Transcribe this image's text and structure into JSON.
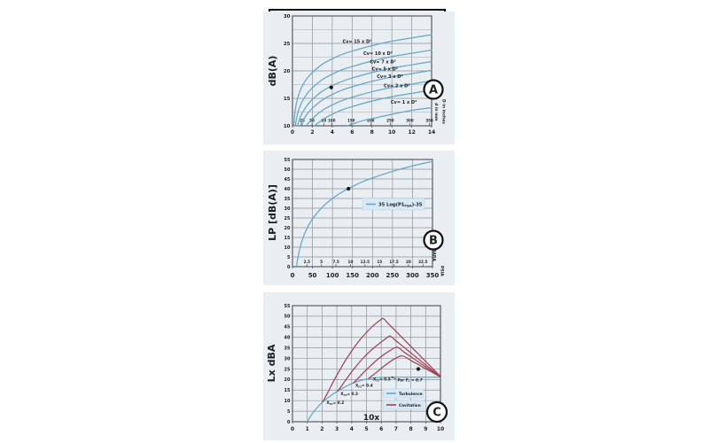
{
  "figure": {
    "description": "Three stacked control-valve noise estimation charts",
    "badges": [
      "A",
      "B",
      "C"
    ]
  },
  "colors": {
    "panel_bg": "#e9eef3",
    "grid": "#8d9499",
    "grid_minor": "#a5abb0",
    "frame": "#4b5054",
    "curve_blue": "#63a7c4",
    "curve_red": "#a04355",
    "text": "#1c1e20",
    "legend_bg": "#d9e9f4",
    "legend_border": "#b7cedd",
    "marker": "#141414",
    "badge_border": "#111111",
    "bracket": "#0d0d0d"
  },
  "chart_data": [
    {
      "id": "A",
      "type": "line",
      "badge": "A",
      "ylabel": "dB(A)",
      "ylim": [
        10,
        30
      ],
      "xlim": [
        0,
        14
      ],
      "yticks": [
        10,
        15,
        20,
        25,
        30
      ],
      "xticks": [
        0,
        2,
        4,
        6,
        8,
        10,
        12,
        14
      ],
      "ygrid_minor": [
        12.5,
        17.5,
        22.5,
        27.5
      ],
      "xgrid": [
        2,
        4,
        6,
        8,
        10,
        12
      ],
      "inner_axis": {
        "ticks": [
          {
            "label": "25",
            "x": 0.98
          },
          {
            "label": "50",
            "x": 1.97
          },
          {
            "label": "80",
            "x": 3.15
          },
          {
            "label": "100",
            "x": 3.94
          },
          {
            "label": "150",
            "x": 5.91
          },
          {
            "label": "200",
            "x": 7.87
          },
          {
            "label": "250",
            "x": 9.84
          },
          {
            "label": "300",
            "x": 11.81
          },
          {
            "label": "350",
            "x": 13.78
          }
        ]
      },
      "side_labels": [
        "d in mm",
        "D in inches"
      ],
      "series": [
        {
          "name": "Cv= 15 x D²",
          "color": "blue",
          "label_pos": [
            6.5,
            25.1
          ],
          "points": [
            [
              0.13,
              10
            ],
            [
              0.2,
              11.6
            ],
            [
              0.3,
              13.1
            ],
            [
              0.5,
              14.9
            ],
            [
              0.75,
              16.3
            ],
            [
              1,
              17.3
            ],
            [
              1.5,
              18.7
            ],
            [
              2,
              19.7
            ],
            [
              3,
              21.2
            ],
            [
              4,
              22.2
            ],
            [
              5,
              23.0
            ],
            [
              6,
              23.6
            ],
            [
              8,
              24.6
            ],
            [
              10,
              25.4
            ],
            [
              12,
              26.0
            ],
            [
              14,
              26.6
            ]
          ]
        },
        {
          "name": "Cv= 10 x D²",
          "color": "blue",
          "label_pos": [
            8.6,
            22.9
          ],
          "points": [
            [
              0.28,
              10
            ],
            [
              0.5,
              12.1
            ],
            [
              0.75,
              13.5
            ],
            [
              1,
              14.5
            ],
            [
              1.5,
              15.9
            ],
            [
              2,
              16.9
            ],
            [
              3,
              18.4
            ],
            [
              4,
              19.4
            ],
            [
              5,
              20.2
            ],
            [
              6,
              20.8
            ],
            [
              8,
              21.8
            ],
            [
              10,
              22.6
            ],
            [
              12,
              23.2
            ],
            [
              14,
              23.8
            ]
          ]
        },
        {
          "name": "Cv= 7 x D²",
          "color": "blue",
          "label_pos": [
            9.1,
            21.4
          ],
          "points": [
            [
              0.5,
              10
            ],
            [
              0.75,
              11.4
            ],
            [
              1,
              12.4
            ],
            [
              1.5,
              13.8
            ],
            [
              2,
              14.8
            ],
            [
              3,
              16.3
            ],
            [
              4,
              17.3
            ],
            [
              5,
              18.1
            ],
            [
              6,
              18.7
            ],
            [
              8,
              19.7
            ],
            [
              10,
              20.5
            ],
            [
              12,
              21.1
            ],
            [
              14,
              21.7
            ]
          ]
        },
        {
          "name": "Cv= 5 x D²",
          "color": "blue",
          "label_pos": [
            9.3,
            20.1
          ],
          "points": [
            [
              0.8,
              10
            ],
            [
              1,
              10.8
            ],
            [
              1.5,
              12.2
            ],
            [
              2,
              13.2
            ],
            [
              3,
              14.7
            ],
            [
              4,
              15.7
            ],
            [
              5,
              16.5
            ],
            [
              6,
              17.1
            ],
            [
              8,
              18.1
            ],
            [
              10,
              18.9
            ],
            [
              12,
              19.5
            ],
            [
              14,
              20.1
            ]
          ]
        },
        {
          "name": "Cv= 3 x D²",
          "color": "blue",
          "label_pos": [
            9.8,
            18.7
          ],
          "points": [
            [
              1.37,
              10
            ],
            [
              2,
              11.3
            ],
            [
              3,
              12.8
            ],
            [
              4,
              13.8
            ],
            [
              5,
              14.6
            ],
            [
              6,
              15.2
            ],
            [
              8,
              16.2
            ],
            [
              10,
              17.0
            ],
            [
              12,
              17.6
            ],
            [
              14,
              18.2
            ]
          ]
        },
        {
          "name": "Cv= 2 x D²",
          "color": "blue",
          "label_pos": [
            10.5,
            17.0
          ],
          "points": [
            [
              2.22,
              10
            ],
            [
              3,
              11.1
            ],
            [
              4,
              12.1
            ],
            [
              5,
              12.9
            ],
            [
              6,
              13.5
            ],
            [
              8,
              14.5
            ],
            [
              10,
              15.3
            ],
            [
              12,
              15.9
            ],
            [
              14,
              16.5
            ]
          ]
        },
        {
          "name": "Cv= 1 x D²",
          "color": "blue",
          "label_pos": [
            11.2,
            14.0
          ],
          "points": [
            [
              5.5,
              10
            ],
            [
              6,
              10.3
            ],
            [
              7,
              10.9
            ],
            [
              8,
              11.3
            ],
            [
              10,
              12.1
            ],
            [
              12,
              12.8
            ],
            [
              14,
              13.3
            ]
          ]
        }
      ],
      "marker": {
        "x": 3.9,
        "y": 17
      }
    },
    {
      "id": "B",
      "type": "line",
      "badge": "B",
      "ylabel": "LP [dB(A)]",
      "ylim": [
        0,
        55
      ],
      "xlim": [
        0,
        350
      ],
      "yticks": [
        0,
        5,
        10,
        15,
        20,
        25,
        30,
        35,
        40,
        45,
        50,
        55
      ],
      "xticks": [
        0,
        50,
        100,
        150,
        200,
        250,
        300,
        350
      ],
      "ygrid_minor": [],
      "xgrid": [
        50,
        100,
        150,
        200,
        250,
        300
      ],
      "inner_axis": {
        "ticks": [
          {
            "label": "2.5",
            "x": 36.3
          },
          {
            "label": "5",
            "x": 72.5
          },
          {
            "label": "7.5",
            "x": 108.8
          },
          {
            "label": "10",
            "x": 145
          },
          {
            "label": "12.5",
            "x": 181.3
          },
          {
            "label": "15",
            "x": 217.6
          },
          {
            "label": "17.5",
            "x": 253.8
          },
          {
            "label": "20",
            "x": 290
          },
          {
            "label": "22.5",
            "x": 326.3
          }
        ]
      },
      "side_labels": [
        "BARA",
        "PSIA"
      ],
      "series": [
        {
          "name": "35 Log(P1psia)-35",
          "color": "blue",
          "points": [
            [
              10,
              0
            ],
            [
              12,
              2.8
            ],
            [
              15,
              6.2
            ],
            [
              20,
              10.5
            ],
            [
              25,
              13.9
            ],
            [
              30,
              16.7
            ],
            [
              40,
              21.1
            ],
            [
              50,
              24.5
            ],
            [
              60,
              27.2
            ],
            [
              75,
              30.6
            ],
            [
              90,
              33.4
            ],
            [
              100,
              35
            ],
            [
              120,
              37.8
            ],
            [
              140,
              40.1
            ],
            [
              170,
              43.1
            ],
            [
              200,
              45.5
            ],
            [
              250,
              48.9
            ],
            [
              300,
              51.7
            ],
            [
              350,
              54.0
            ]
          ]
        }
      ],
      "legend": {
        "items": [
          {
            "color": "blue",
            "pre": "35 Log(P1",
            "sub": "PSIA",
            "post": ")-35"
          }
        ]
      },
      "marker": {
        "x": 140,
        "y": 40
      }
    },
    {
      "id": "C",
      "type": "line",
      "badge": "C",
      "ylabel": "Lx dBA",
      "xlabel": "10x",
      "ylim": [
        0,
        55
      ],
      "xlim": [
        0,
        10
      ],
      "yticks": [
        0,
        5,
        10,
        15,
        20,
        25,
        30,
        35,
        40,
        45,
        50,
        55
      ],
      "xticks": [
        0,
        1,
        2,
        3,
        4,
        5,
        6,
        7,
        8,
        9,
        10
      ],
      "ygrid_minor": [],
      "xgrid": [
        1,
        2,
        3,
        4,
        5,
        6,
        7,
        8,
        9
      ],
      "series": [
        {
          "name": "Turbulence",
          "color": "blue",
          "points": [
            [
              1,
              0
            ],
            [
              1.2,
              2.4
            ],
            [
              1.5,
              5.3
            ],
            [
              1.8,
              7.7
            ],
            [
              2.1,
              9.7
            ],
            [
              2.5,
              11.9
            ],
            [
              3,
              14.3
            ],
            [
              3.5,
              16.3
            ],
            [
              4,
              18.1
            ],
            [
              4.5,
              19.3
            ],
            [
              5,
              20.2
            ],
            [
              5.5,
              20.8
            ],
            [
              6,
              21
            ],
            [
              7,
              21.1
            ],
            [
              8,
              21.1
            ],
            [
              9,
              21.1
            ],
            [
              10,
              21.1
            ]
          ]
        },
        {
          "name": "Cavitation XFZ=0.2",
          "color": "red",
          "points": [
            [
              2.05,
              9.4
            ],
            [
              2.4,
              14
            ],
            [
              2.8,
              19.5
            ],
            [
              3.2,
              24.5
            ],
            [
              3.6,
              29.3
            ],
            [
              4,
              33.5
            ],
            [
              4.5,
              38.3
            ],
            [
              5,
              42.3
            ],
            [
              5.5,
              45.8
            ],
            [
              6,
              48.5
            ],
            [
              6.15,
              48.8
            ],
            [
              6.5,
              46.3
            ],
            [
              7,
              42.8
            ],
            [
              8,
              35.7
            ],
            [
              9,
              28.6
            ],
            [
              10,
              21.5
            ]
          ]
        },
        {
          "name": "Cavitation XFZ=0.3",
          "color": "red",
          "points": [
            [
              3.05,
              14.4
            ],
            [
              3.4,
              17.8
            ],
            [
              3.8,
              21.8
            ],
            [
              4.2,
              25.4
            ],
            [
              4.6,
              28.8
            ],
            [
              5,
              31.8
            ],
            [
              5.5,
              35
            ],
            [
              6,
              37.8
            ],
            [
              6.3,
              39.3
            ],
            [
              6.6,
              40.6
            ],
            [
              7,
              38.3
            ],
            [
              7.5,
              35.5
            ],
            [
              8,
              32.6
            ],
            [
              9,
              27
            ],
            [
              10,
              21.3
            ]
          ]
        },
        {
          "name": "Cavitation XFZ=0.4",
          "color": "red",
          "points": [
            [
              4.1,
              18.3
            ],
            [
              4.4,
              20.3
            ],
            [
              4.8,
              23.3
            ],
            [
              5.2,
              26
            ],
            [
              5.6,
              28.6
            ],
            [
              6,
              30.9
            ],
            [
              6.5,
              33.3
            ],
            [
              7.05,
              35.3
            ],
            [
              7.5,
              33.2
            ],
            [
              8,
              30.8
            ],
            [
              8.5,
              28.4
            ],
            [
              9,
              26
            ],
            [
              9.5,
              23.6
            ],
            [
              10,
              21.3
            ]
          ]
        },
        {
          "name": "Cavitation XFZ=0.5",
          "color": "red",
          "points": [
            [
              5.15,
              20.6
            ],
            [
              5.5,
              22.4
            ],
            [
              6,
              25.3
            ],
            [
              6.5,
              28
            ],
            [
              7,
              30.2
            ],
            [
              7.45,
              31.2
            ],
            [
              8,
              29
            ],
            [
              8.5,
              27.1
            ],
            [
              9,
              25.1
            ],
            [
              9.5,
              23.2
            ],
            [
              10,
              21.2
            ]
          ]
        }
      ],
      "branch_labels": [
        {
          "pre": "X",
          "sub": "FZ",
          "post": "= 0.2",
          "x": 2.3,
          "y": 8.4
        },
        {
          "pre": "X",
          "sub": "FZ",
          "post": "= 0.3",
          "x": 3.25,
          "y": 12.6
        },
        {
          "pre": "X",
          "sub": "FZ",
          "post": "= 0.4",
          "x": 4.25,
          "y": 16.6
        },
        {
          "pre": "X",
          "sub": "FZ",
          "post": "= 0.5",
          "x": 5.45,
          "y": 19.6
        }
      ],
      "annotation": {
        "pre": "For F",
        "sub": "L",
        "post": " = 0.7",
        "x": 7.1,
        "y": 19.2,
        "arrow_from": [
          7.0,
          20.1
        ],
        "arrow_to": [
          6.68,
          21.4
        ]
      },
      "legend": {
        "items": [
          {
            "color": "blue",
            "pre": "Turbulence",
            "sub": "",
            "post": ""
          },
          {
            "color": "red",
            "pre": "Cavitation",
            "sub": "",
            "post": ""
          }
        ]
      },
      "marker": {
        "x": 8.5,
        "y": 25
      }
    }
  ]
}
